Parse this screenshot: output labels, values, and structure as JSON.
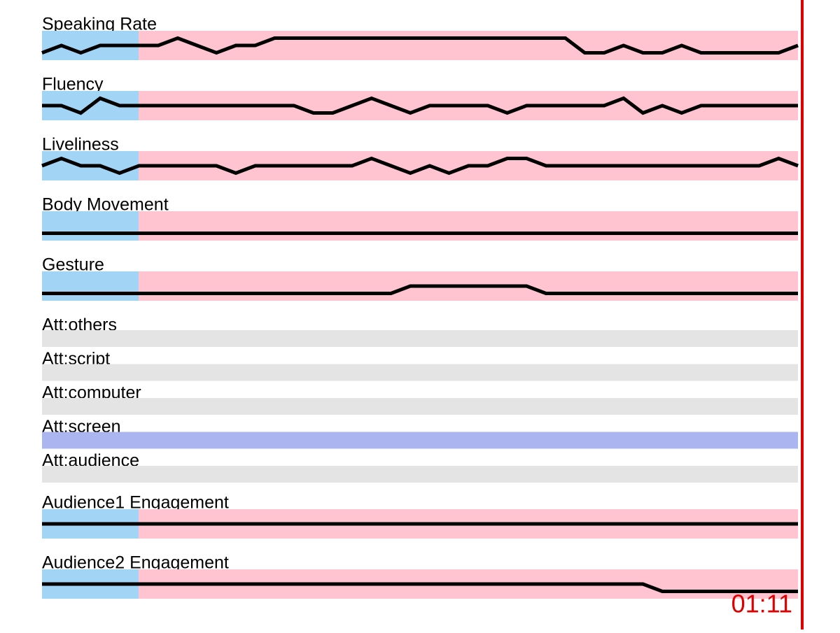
{
  "tracks": [
    {
      "label": "Speaking Rate",
      "values": [
        1,
        2,
        1,
        2,
        2,
        2,
        2,
        3,
        2,
        1,
        2,
        2,
        3,
        3,
        3,
        3,
        3,
        3,
        3,
        3,
        3,
        3,
        3,
        3,
        3,
        3,
        3,
        3,
        1,
        1,
        2,
        1,
        1,
        2,
        1,
        1,
        1,
        1,
        1,
        2
      ]
    },
    {
      "label": "Fluency",
      "values": [
        2,
        2,
        1,
        3,
        2,
        2,
        2,
        2,
        2,
        2,
        2,
        2,
        2,
        2,
        1,
        1,
        2,
        3,
        2,
        1,
        2,
        2,
        2,
        2,
        1,
        2,
        2,
        2,
        2,
        2,
        3,
        1,
        2,
        1,
        2,
        2,
        2,
        2,
        2,
        2
      ]
    },
    {
      "label": "Liveliness",
      "values": [
        2,
        3,
        2,
        2,
        1,
        2,
        2,
        2,
        2,
        2,
        1,
        2,
        2,
        2,
        2,
        2,
        2,
        3,
        2,
        1,
        2,
        1,
        2,
        2,
        3,
        3,
        2,
        2,
        2,
        2,
        2,
        2,
        2,
        2,
        2,
        2,
        2,
        2,
        3,
        2
      ]
    },
    {
      "label": "Body Movement",
      "values": [
        1,
        1,
        1,
        1,
        1,
        1,
        1,
        1,
        1,
        1,
        1,
        1,
        1,
        1,
        1,
        1,
        1,
        1,
        1,
        1,
        1,
        1,
        1,
        1,
        1,
        1,
        1,
        1,
        1,
        1,
        1,
        1,
        1,
        1,
        1,
        1,
        1,
        1,
        1,
        1
      ]
    },
    {
      "label": "Gesture",
      "values": [
        1,
        1,
        1,
        1,
        1,
        1,
        1,
        1,
        1,
        1,
        1,
        1,
        1,
        1,
        1,
        1,
        1,
        1,
        1,
        2,
        2,
        2,
        2,
        2,
        2,
        2,
        1,
        1,
        1,
        1,
        1,
        1,
        1,
        1,
        1,
        1,
        1,
        1,
        1,
        1
      ]
    },
    {
      "label": "Att:others",
      "active": false
    },
    {
      "label": "Att:script",
      "active": false
    },
    {
      "label": "Att:computer",
      "active": false
    },
    {
      "label": "Att:screen",
      "active": true
    },
    {
      "label": "Att:audience",
      "active": false
    },
    {
      "label": "Audience1 Engagement",
      "values": [
        2,
        2,
        2,
        2,
        2,
        2,
        2,
        2,
        2,
        2,
        2,
        2,
        2,
        2,
        2,
        2,
        2,
        2,
        2,
        2,
        2,
        2,
        2,
        2,
        2,
        2,
        2,
        2,
        2,
        2,
        2,
        2,
        2,
        2,
        2,
        2,
        2,
        2,
        2,
        2
      ]
    },
    {
      "label": "Audience2 Engagement",
      "values": [
        2,
        2,
        2,
        2,
        2,
        2,
        2,
        2,
        2,
        2,
        2,
        2,
        2,
        2,
        2,
        2,
        2,
        2,
        2,
        2,
        2,
        2,
        2,
        2,
        2,
        2,
        2,
        2,
        2,
        2,
        2,
        2,
        1,
        1,
        1,
        1,
        1,
        1,
        1,
        1
      ]
    }
  ],
  "ylim": [
    0,
    4
  ],
  "time": "01:11"
}
